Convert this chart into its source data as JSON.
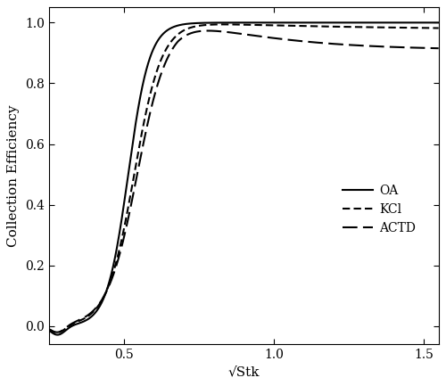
{
  "title": "",
  "xlabel": "√Stk",
  "ylabel": "Collection Efficiency",
  "xlim": [
    0.25,
    1.55
  ],
  "ylim": [
    -0.06,
    1.05
  ],
  "xticks": [
    0.5,
    1.0,
    1.5
  ],
  "yticks": [
    0.0,
    0.2,
    0.4,
    0.6,
    0.8,
    1.0
  ],
  "background_color": "#ffffff",
  "legend_labels": [
    "OA",
    "KCl",
    "ACTD"
  ],
  "line_color": "#000000",
  "linewidth": 1.5,
  "figsize": [
    5.0,
    4.33
  ],
  "dpi": 100
}
